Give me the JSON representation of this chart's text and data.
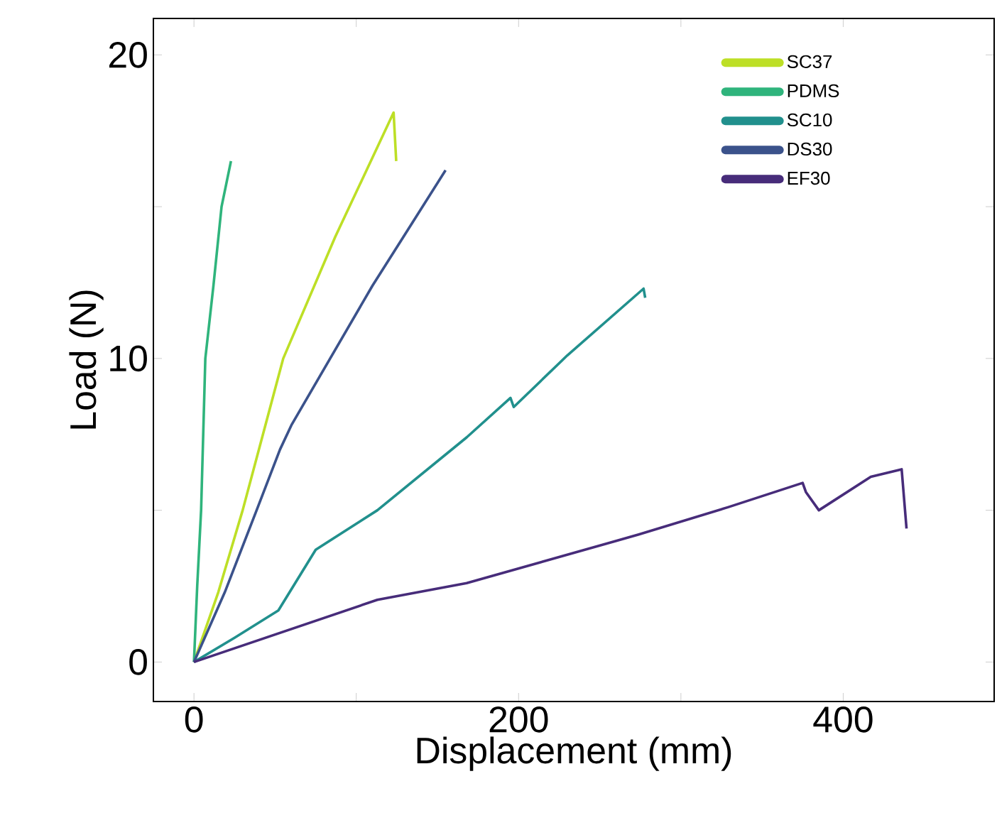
{
  "chart_data": {
    "type": "line",
    "xlabel": "Displacement (mm)",
    "ylabel": "Load (N)",
    "xlim": [
      -25,
      493
    ],
    "ylim": [
      -1.3,
      21.2
    ],
    "xticks": [
      0,
      {
        "value": 100,
        "label": null
      },
      200,
      {
        "value": 300,
        "label": null
      },
      400
    ],
    "yticks": [
      0,
      {
        "value": 5,
        "label": null
      },
      10,
      {
        "value": 15,
        "label": null
      },
      20
    ],
    "legend": "top right",
    "line_style": "solid",
    "series": [
      {
        "name": "SC37",
        "color": "#bddf26",
        "x": [
          0,
          15,
          30,
          44,
          55,
          87,
          123,
          124.6
        ],
        "values": [
          0,
          2.3,
          5,
          7.8,
          10,
          14,
          18.1,
          16.5
        ]
      },
      {
        "name": "PDMS",
        "color": "#2fb47c",
        "x": [
          0,
          2,
          4.4,
          7,
          12,
          17,
          22.8
        ],
        "values": [
          0,
          2.5,
          5,
          10,
          12.4,
          15,
          16.5
        ]
      },
      {
        "name": "SC10",
        "color": "#21908d",
        "x": [
          0,
          25,
          52,
          75,
          113,
          168,
          195,
          197,
          230,
          277,
          278
        ],
        "values": [
          0,
          0.8,
          1.7,
          3.7,
          5,
          7.4,
          8.7,
          8.4,
          10.1,
          12.3,
          12
        ]
      },
      {
        "name": "DS30",
        "color": "#3b528b",
        "x": [
          0,
          19,
          38.6,
          53,
          60,
          110,
          129,
          155
        ],
        "values": [
          0,
          2.3,
          5,
          7,
          7.8,
          12.4,
          14,
          16.2
        ]
      },
      {
        "name": "EF30",
        "color": "#472c7a",
        "x": [
          0,
          113,
          168,
          274,
          329,
          375,
          377,
          385,
          417,
          436,
          439
        ],
        "values": [
          0,
          2.05,
          2.6,
          4.2,
          5.1,
          5.9,
          5.6,
          5,
          6.1,
          6.35,
          4.4
        ]
      }
    ]
  }
}
